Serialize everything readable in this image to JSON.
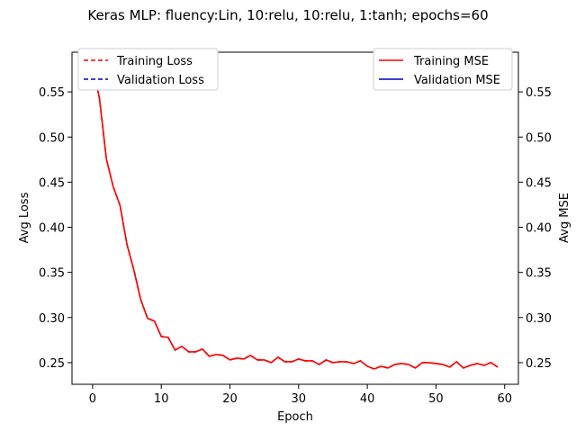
{
  "chart_data": {
    "type": "line",
    "title": "Keras MLP: fluency:Lin, 10:relu, 10:relu, 1:tanh; epochs=60",
    "xlabel": "Epoch",
    "ylabel_left": "Avg Loss",
    "ylabel_right": "Avg MSE",
    "xlim": [
      -3,
      62
    ],
    "ylim": [
      0.226,
      0.594
    ],
    "xticks": [
      0,
      10,
      20,
      30,
      40,
      50,
      60
    ],
    "yticks": [
      0.25,
      0.3,
      0.35,
      0.4,
      0.45,
      0.5,
      0.55
    ],
    "ytick_labels": [
      "0.25",
      "0.30",
      "0.35",
      "0.40",
      "0.45",
      "0.50",
      "0.55"
    ],
    "legend_left": {
      "placement": "upper-left",
      "entries": [
        {
          "name": "Training Loss",
          "color": "#ff0000",
          "style": "dashed"
        },
        {
          "name": "Validation Loss",
          "color": "#0000bf",
          "style": "dashed"
        }
      ]
    },
    "legend_right": {
      "placement": "upper-right",
      "entries": [
        {
          "name": "Training MSE",
          "color": "#ff0000",
          "style": "solid"
        },
        {
          "name": "Validation MSE",
          "color": "#0000bf",
          "style": "solid"
        }
      ]
    },
    "series": [
      {
        "name": "Training MSE",
        "color": "#ff0000",
        "x": [
          0,
          1,
          2,
          3,
          4,
          5,
          6,
          7,
          8,
          9,
          10,
          11,
          12,
          13,
          14,
          15,
          16,
          17,
          18,
          19,
          20,
          21,
          22,
          23,
          24,
          25,
          26,
          27,
          28,
          29,
          30,
          31,
          32,
          33,
          34,
          35,
          36,
          37,
          38,
          39,
          40,
          41,
          42,
          43,
          44,
          45,
          46,
          47,
          48,
          49,
          50,
          51,
          52,
          53,
          54,
          55,
          56,
          57,
          58,
          59
        ],
        "y": [
          0.577,
          0.543,
          0.476,
          0.445,
          0.424,
          0.381,
          0.353,
          0.32,
          0.299,
          0.296,
          0.279,
          0.278,
          0.264,
          0.268,
          0.262,
          0.262,
          0.265,
          0.257,
          0.259,
          0.258,
          0.253,
          0.255,
          0.254,
          0.258,
          0.253,
          0.253,
          0.25,
          0.256,
          0.251,
          0.251,
          0.254,
          0.252,
          0.252,
          0.248,
          0.253,
          0.25,
          0.251,
          0.251,
          0.249,
          0.252,
          0.246,
          0.243,
          0.246,
          0.244,
          0.248,
          0.249,
          0.248,
          0.244,
          0.25,
          0.25,
          0.249,
          0.248,
          0.245,
          0.251,
          0.244,
          0.247,
          0.249,
          0.247,
          0.25,
          0.245
        ]
      }
    ]
  }
}
